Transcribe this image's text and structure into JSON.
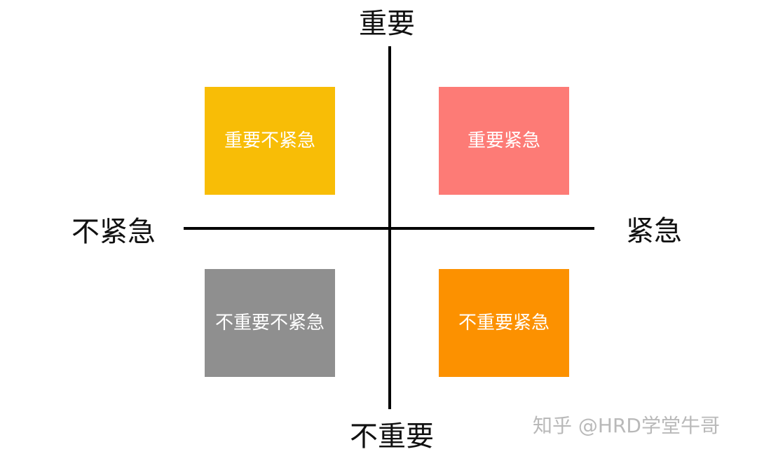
{
  "axes": {
    "top": "重要",
    "bottom": "不重要",
    "left": "不紧急",
    "right": "紧急",
    "line_color": "#000000"
  },
  "quadrants": {
    "important_not_urgent": {
      "label": "重要不紧急",
      "color": "#f8bd06"
    },
    "important_urgent": {
      "label": "重要紧急",
      "color": "#fd7b76"
    },
    "not_important_not_urgent": {
      "label": "不重要不紧急",
      "color": "#8f8f8f"
    },
    "not_important_urgent": {
      "label": "不重要紧急",
      "color": "#fc9100"
    }
  },
  "watermark": "知乎 @HRD学堂牛哥"
}
